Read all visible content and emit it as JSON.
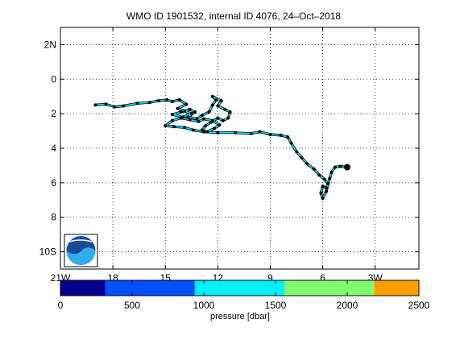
{
  "chart_data": [
    {
      "type": "map-track",
      "title": "WMO ID 1901532, internal ID 4076, 24–Oct–2018",
      "x_ticks": [
        {
          "value": -21,
          "label": "21W"
        },
        {
          "value": -18,
          "label": "18"
        },
        {
          "value": -15,
          "label": "15"
        },
        {
          "value": -12,
          "label": "12"
        },
        {
          "value": -9,
          "label": "9"
        },
        {
          "value": -6,
          "label": "6"
        },
        {
          "value": -3,
          "label": "3W"
        }
      ],
      "y_ticks": [
        {
          "value": 2,
          "label": "2N"
        },
        {
          "value": 0,
          "label": "0"
        },
        {
          "value": -2,
          "label": "2"
        },
        {
          "value": -4,
          "label": "4"
        },
        {
          "value": -6,
          "label": "6"
        },
        {
          "value": -8,
          "label": "8"
        },
        {
          "value": -10,
          "label": "10S"
        }
      ],
      "xlim": [
        -21,
        -0.5
      ],
      "ylim": [
        -11,
        3
      ],
      "grid": true,
      "logo": "noaa-logo",
      "track_color": "#00e5ff",
      "marker_color": "#000000",
      "track": [
        [
          -19.0,
          -1.5
        ],
        [
          -18.4,
          -1.45
        ],
        [
          -17.9,
          -1.6
        ],
        [
          -17.4,
          -1.55
        ],
        [
          -16.6,
          -1.4
        ],
        [
          -15.9,
          -1.35
        ],
        [
          -15.4,
          -1.25
        ],
        [
          -14.9,
          -1.2
        ],
        [
          -14.6,
          -1.3
        ],
        [
          -14.2,
          -1.2
        ],
        [
          -13.8,
          -1.45
        ],
        [
          -14.3,
          -1.7
        ],
        [
          -13.9,
          -1.85
        ],
        [
          -13.5,
          -2.0
        ],
        [
          -14.0,
          -2.2
        ],
        [
          -14.6,
          -2.05
        ],
        [
          -14.1,
          -1.9
        ],
        [
          -13.6,
          -1.75
        ],
        [
          -13.3,
          -1.9
        ],
        [
          -13.7,
          -2.2
        ],
        [
          -13.2,
          -2.3
        ],
        [
          -12.9,
          -2.1
        ],
        [
          -12.5,
          -1.9
        ],
        [
          -12.3,
          -1.5
        ],
        [
          -12.1,
          -1.2
        ],
        [
          -12.3,
          -1.0
        ],
        [
          -11.8,
          -1.25
        ],
        [
          -12.0,
          -1.55
        ],
        [
          -11.6,
          -1.75
        ],
        [
          -11.3,
          -1.9
        ],
        [
          -11.4,
          -2.25
        ],
        [
          -11.7,
          -2.4
        ],
        [
          -12.0,
          -2.25
        ],
        [
          -12.4,
          -2.5
        ],
        [
          -12.7,
          -2.7
        ],
        [
          -12.9,
          -2.95
        ],
        [
          -12.6,
          -3.05
        ],
        [
          -12.2,
          -2.85
        ],
        [
          -11.9,
          -2.65
        ],
        [
          -12.3,
          -2.4
        ],
        [
          -12.8,
          -2.3
        ],
        [
          -13.1,
          -2.45
        ],
        [
          -13.6,
          -2.35
        ],
        [
          -14.1,
          -2.25
        ],
        [
          -14.6,
          -2.4
        ],
        [
          -15.0,
          -2.7
        ],
        [
          -14.5,
          -2.75
        ],
        [
          -13.9,
          -2.8
        ],
        [
          -13.4,
          -2.95
        ],
        [
          -12.8,
          -3.05
        ],
        [
          -12.0,
          -3.1
        ],
        [
          -11.0,
          -3.1
        ],
        [
          -10.1,
          -3.15
        ],
        [
          -9.6,
          -3.05
        ],
        [
          -9.0,
          -3.2
        ],
        [
          -8.4,
          -3.25
        ],
        [
          -8.0,
          -3.35
        ],
        [
          -7.8,
          -3.7
        ],
        [
          -7.5,
          -4.2
        ],
        [
          -7.2,
          -4.55
        ],
        [
          -6.9,
          -4.9
        ],
        [
          -6.5,
          -5.2
        ],
        [
          -6.2,
          -5.55
        ],
        [
          -5.9,
          -5.8
        ],
        [
          -5.7,
          -6.05
        ],
        [
          -5.8,
          -6.3
        ],
        [
          -6.0,
          -6.2
        ],
        [
          -6.1,
          -6.6
        ],
        [
          -6.0,
          -6.9
        ],
        [
          -5.8,
          -6.5
        ],
        [
          -5.6,
          -5.75
        ],
        [
          -5.5,
          -5.4
        ],
        [
          -5.3,
          -5.1
        ],
        [
          -5.0,
          -5.05
        ],
        [
          -4.6,
          -5.1
        ]
      ],
      "last_position": [
        -4.6,
        -5.1
      ],
      "colorbar": {
        "title": "pressure [dbar]",
        "tick_values": [
          0,
          500,
          1000,
          1500,
          2000,
          2500
        ],
        "tick_labels": [
          "0",
          "500",
          "1000",
          "1500",
          "2000",
          "2500"
        ],
        "min": 0,
        "max": 2500,
        "bins": [
          {
            "from": 0,
            "to": 312,
            "color": "#00008f"
          },
          {
            "from": 312,
            "to": 937,
            "color": "#0050ff"
          },
          {
            "from": 937,
            "to": 1562,
            "color": "#00f0ff"
          },
          {
            "from": 1562,
            "to": 2187,
            "color": "#80ff70"
          },
          {
            "from": 2187,
            "to": 2500,
            "color": "#ffa000"
          }
        ]
      }
    }
  ]
}
